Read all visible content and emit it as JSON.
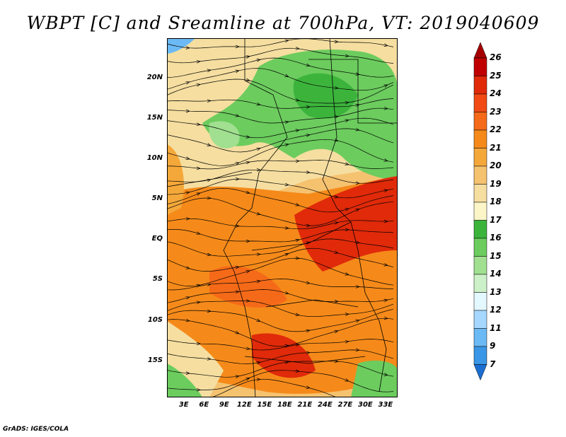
{
  "title": "WBPT [C] and Sreamline at 700hPa, VT: 2019040609",
  "footer": "GrADS: IGES/COLA",
  "map": {
    "lat_labels": [
      "20N",
      "15N",
      "10N",
      "5N",
      "EQ",
      "5S",
      "10S",
      "15S"
    ],
    "lat_values": [
      20,
      15,
      10,
      5,
      0,
      -5,
      -10,
      -15
    ],
    "lon_labels": [
      "3E",
      "6E",
      "9E",
      "12E",
      "15E",
      "18E",
      "21E",
      "24E",
      "27E",
      "30E",
      "33E"
    ],
    "lon_values": [
      3,
      6,
      9,
      12,
      15,
      18,
      21,
      24,
      27,
      30,
      33
    ],
    "lon_range": [
      0.5,
      34.8
    ],
    "lat_range": [
      -19.5,
      25
    ]
  },
  "colorbar": {
    "labels": [
      "26",
      "25",
      "24",
      "23",
      "22",
      "21",
      "20",
      "19",
      "18",
      "17",
      "16",
      "15",
      "14",
      "13",
      "12",
      "11",
      "9",
      "7"
    ],
    "colors": [
      "#a50000",
      "#c00000",
      "#e02a0a",
      "#f24a14",
      "#f56a18",
      "#f58a1a",
      "#f5a83a",
      "#f5c270",
      "#f5dea0",
      "#fbf5c8",
      "#3cb43c",
      "#6ccc5e",
      "#a0e090",
      "#ccf0c8",
      "#e4f8ff",
      "#a6d8ff",
      "#6cbaf5",
      "#3a96e6",
      "#1a6ed2"
    ]
  }
}
